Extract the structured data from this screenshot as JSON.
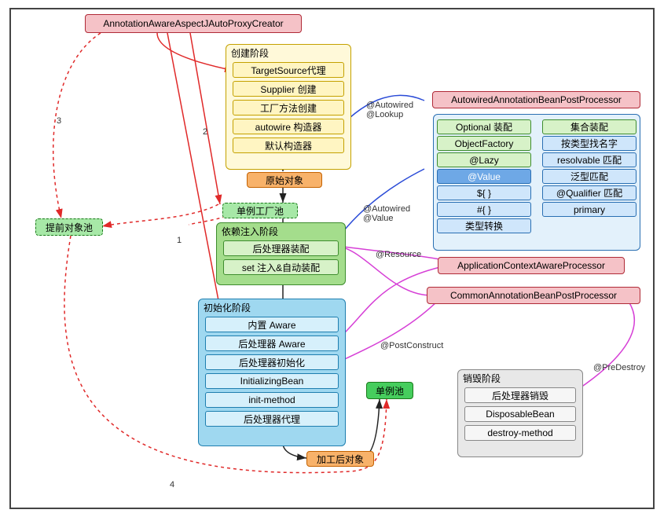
{
  "diagram": {
    "type": "flowchart",
    "background": "#ffffff",
    "frame_border": "#444444",
    "title_box": {
      "label": "AnnotationAwareAspectJAutoProxyCreator",
      "fill": "#f5c2c7",
      "border": "#b02a37"
    },
    "cache_box": {
      "label": "提前对象池",
      "fill": "#a7e8a7",
      "border": "#1a7a1a"
    },
    "original_obj": {
      "label": "原始对象",
      "fill": "#f8b26a",
      "border": "#c46200"
    },
    "factory_box": {
      "label": "单例工厂池",
      "fill": "#a7e8a7",
      "border": "#1a7a1a"
    },
    "processed_obj": {
      "label": "加工后对象",
      "fill": "#f8b26a",
      "border": "#c46200"
    },
    "singleton_pool": {
      "label": "单例池",
      "fill": "#46cd5d",
      "border": "#1a7a1a"
    },
    "phase_create": {
      "title": "创建阶段",
      "fill": "#fff9d9",
      "border": "#c4a100",
      "items": [
        "TargetSource代理",
        "Supplier 创建",
        "工厂方法创建",
        "autowire 构造器",
        "默认构造器"
      ],
      "item_fill": "#fff5c2",
      "item_border": "#c4a100"
    },
    "phase_di": {
      "title": "依赖注入阶段",
      "fill": "#a4dd8c",
      "border": "#3e8d2e",
      "items": [
        "后处理器装配",
        "set 注入&自动装配"
      ],
      "item_fill": "#d7f2c8",
      "item_border": "#3e8d2e"
    },
    "phase_init": {
      "title": "初始化阶段",
      "fill": "#9fd8f0",
      "border": "#1e7eaf",
      "items": [
        "内置 Aware",
        "后处理器 Aware",
        "后处理器初始化",
        "InitializingBean",
        "init-method",
        "后处理器代理"
      ],
      "item_fill": "#d6f0fb",
      "item_border": "#1e7eaf"
    },
    "phase_destroy": {
      "title": "销毁阶段",
      "fill": "#e8e8e8",
      "border": "#888888",
      "items": [
        "后处理器销毁",
        "DisposableBean",
        "destroy-method"
      ],
      "item_fill": "#f6f6f6",
      "item_border": "#888888"
    },
    "autowired_box": {
      "label": "AutowiredAnnotationBeanPostProcessor",
      "fill": "#f5c2c7",
      "border": "#b02a37"
    },
    "acap_box": {
      "label": "ApplicationContextAwareProcessor",
      "fill": "#f5c2c7",
      "border": "#b02a37"
    },
    "cabpp_box": {
      "label": "CommonAnnotationBeanPostProcessor",
      "fill": "#f5c2c7",
      "border": "#b02a37"
    },
    "autowired_panel": {
      "fill": "#e3f1fb",
      "border": "#2a6fb3",
      "left_items": [
        "Optional 装配",
        "ObjectFactory",
        "@Lazy",
        "@Value",
        "${ }",
        "#{ }",
        "类型转换"
      ],
      "right_items": [
        "集合装配",
        "按类型找名字",
        "resolvable 匹配",
        "泛型匹配",
        "@Qualifier 匹配",
        "primary"
      ],
      "item_fill_green": "#d7f2c8",
      "item_border_green": "#3e8d2e",
      "item_fill_blue": "#cfe6fb",
      "item_border_blue": "#2a6fb3",
      "value_fill": "#6ea8e6",
      "value_border": "#2a6fb3"
    },
    "edge_labels": {
      "n1": "1",
      "n2": "2",
      "n3": "3",
      "n4": "4",
      "aw_lookup": "@Autowired\n@Lookup",
      "aw_value": "@Autowired\n@Value",
      "resource": "@Resource",
      "postconstruct": "@PostConstruct",
      "predestroy": "@PreDestroy"
    },
    "colors": {
      "red": "#e02929",
      "magenta": "#d63fd6",
      "blue": "#2a4bd7",
      "black": "#222222"
    }
  }
}
